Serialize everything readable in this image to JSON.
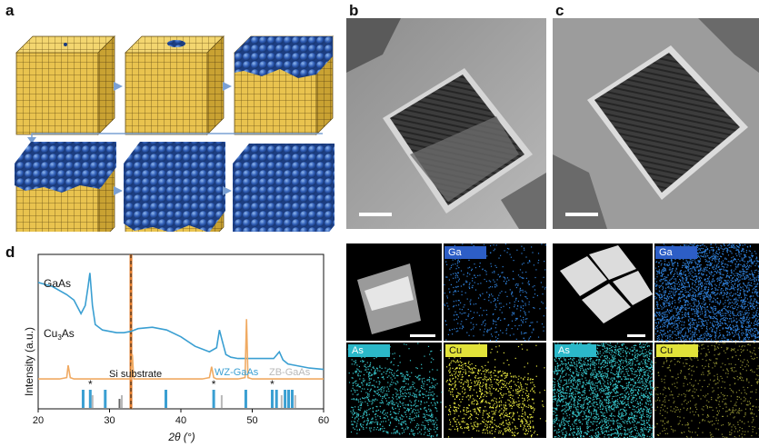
{
  "panels": {
    "a": "a",
    "b": "b",
    "c": "c",
    "d": "d"
  },
  "maps": {
    "ga": "Ga",
    "as": "As",
    "cu": "Cu"
  },
  "chart_data": {
    "type": "line",
    "xlabel": "2θ (°)",
    "ylabel": "Intensity (a.u.)",
    "xlim": [
      20,
      60
    ],
    "xticks": [
      20,
      30,
      40,
      50,
      60
    ],
    "series": [
      {
        "name": "GaAs",
        "color": "#3a9fd2",
        "x": [
          20,
          22,
          24,
          25,
          25.6,
          26,
          26.6,
          27,
          27.25,
          27.6,
          28,
          29,
          30,
          31,
          32,
          33,
          34,
          36,
          38,
          40,
          42,
          44,
          45,
          45.4,
          45.8,
          46.3,
          47,
          48,
          50,
          52,
          53,
          53.8,
          54.3,
          55,
          56,
          58,
          60
        ],
        "y": [
          0.93,
          0.9,
          0.84,
          0.8,
          0.74,
          0.7,
          0.76,
          0.9,
          1.0,
          0.76,
          0.62,
          0.58,
          0.57,
          0.56,
          0.56,
          0.57,
          0.59,
          0.6,
          0.58,
          0.53,
          0.46,
          0.42,
          0.45,
          0.58,
          0.5,
          0.4,
          0.38,
          0.37,
          0.37,
          0.37,
          0.37,
          0.42,
          0.36,
          0.33,
          0.32,
          0.3,
          0.29
        ]
      },
      {
        "name": "Cu3As",
        "color": "#f0aa62",
        "x": [
          20,
          23,
          24,
          24.2,
          24.5,
          25,
          27,
          30,
          33,
          33.2,
          33.4,
          34,
          38,
          43,
          44,
          44.3,
          44.6,
          45,
          46,
          48,
          49,
          49.2,
          49.4,
          50,
          52,
          55,
          58,
          60
        ],
        "y": [
          0.22,
          0.22,
          0.23,
          0.32,
          0.23,
          0.22,
          0.22,
          0.22,
          0.22,
          0.4,
          0.22,
          0.22,
          0.22,
          0.22,
          0.23,
          0.31,
          0.23,
          0.22,
          0.22,
          0.22,
          0.23,
          0.66,
          0.23,
          0.22,
          0.22,
          0.22,
          0.22,
          0.22
        ]
      }
    ],
    "series_labels": {
      "gaas": "GaAs",
      "cu3as": "Cu"
    },
    "si_substrate": {
      "label": "Si substrate",
      "x": 33
    },
    "references": {
      "wz": {
        "name": "WZ-GaAs",
        "color": "#3a9fd2",
        "peaks": [
          26.3,
          27.3,
          29.4,
          37.9,
          44.6,
          49.1,
          52.8,
          53.4,
          54.6,
          55.1,
          55.6
        ]
      },
      "zb": {
        "name": "ZB-GaAs",
        "color": "#b8b8b8",
        "peaks": [
          27.3,
          31.4,
          45.4,
          53.8,
          55.7
        ]
      },
      "si": {
        "color": "#666666",
        "peaks": [
          31.4
        ]
      }
    },
    "star_marker": "*",
    "starred_peaks": [
      27.3,
      44.6,
      52.8
    ]
  }
}
